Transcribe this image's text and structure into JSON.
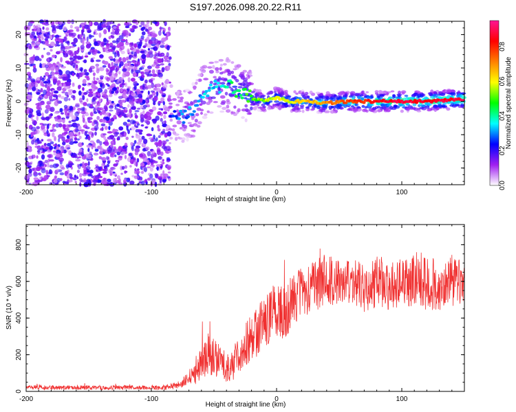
{
  "title": "S197.2026.098.20.22.R11",
  "top_panel": {
    "type": "heatmap",
    "xlabel": "Height of straight line (km)",
    "ylabel": "Frequency (Hz)",
    "xlim": [
      -200,
      150
    ],
    "ylim": [
      -25,
      24
    ],
    "x_ticks": [
      {
        "value": -200,
        "label": "-200"
      },
      {
        "value": -100,
        "label": "-100"
      },
      {
        "value": 0,
        "label": "0"
      },
      {
        "value": 100,
        "label": "100"
      }
    ],
    "y_ticks": [
      {
        "value": 20,
        "label": "20"
      },
      {
        "value": 10,
        "label": "10"
      },
      {
        "value": 0,
        "label": "0"
      },
      {
        "value": -10,
        "label": "-10"
      },
      {
        "value": -20,
        "label": "-20"
      }
    ],
    "noise_edge_km": -85,
    "ridge": [
      {
        "x": -85,
        "f": -3,
        "a": 0.2
      },
      {
        "x": -75,
        "f": -5,
        "a": 0.25
      },
      {
        "x": -65,
        "f": -2,
        "a": 0.25
      },
      {
        "x": -58,
        "f": 3,
        "a": 0.3
      },
      {
        "x": -50,
        "f": 4,
        "a": 0.3
      },
      {
        "x": -40,
        "f": 5,
        "a": 0.35
      },
      {
        "x": -30,
        "f": 3,
        "a": 0.4
      },
      {
        "x": -20,
        "f": 1,
        "a": 0.45
      },
      {
        "x": -10,
        "f": 0,
        "a": 0.5
      },
      {
        "x": 0,
        "f": 1,
        "a": 0.55
      },
      {
        "x": 10,
        "f": 0,
        "a": 0.55
      },
      {
        "x": 20,
        "f": 0,
        "a": 0.6
      },
      {
        "x": 40,
        "f": -0.5,
        "a": 0.65
      },
      {
        "x": 60,
        "f": 0,
        "a": 0.75
      },
      {
        "x": 80,
        "f": 0,
        "a": 0.8
      },
      {
        "x": 100,
        "f": 0,
        "a": 0.85
      },
      {
        "x": 120,
        "f": 0,
        "a": 0.8
      },
      {
        "x": 140,
        "f": 0.5,
        "a": 0.85
      },
      {
        "x": 150,
        "f": 0.5,
        "a": 0.85
      }
    ]
  },
  "colorbar": {
    "label": "Normalized spectral amplitude",
    "range": [
      0,
      0.95
    ],
    "ticks": [
      {
        "value": 0.0,
        "label": "0.0"
      },
      {
        "value": 0.2,
        "label": "0.2"
      },
      {
        "value": 0.4,
        "label": "0.4"
      },
      {
        "value": 0.6,
        "label": "0.6"
      },
      {
        "value": 0.8,
        "label": "0.8"
      }
    ],
    "colors": [
      "#ffffff",
      "#a020f0",
      "#0000ff",
      "#00ffff",
      "#00ff00",
      "#ffff00",
      "#ff8000",
      "#ff0000",
      "#ff1493"
    ]
  },
  "chart_data": {
    "type": "line",
    "title": "S197.2026.098.20.22.R11",
    "xlabel": "Height of straight line (km)",
    "ylabel": "SNR (10 * v/v)",
    "xlim": [
      -200,
      150
    ],
    "ylim": [
      0,
      910
    ],
    "x_ticks": [
      {
        "value": -200,
        "label": "-200"
      },
      {
        "value": -100,
        "label": "-100"
      },
      {
        "value": 0,
        "label": "0"
      },
      {
        "value": 100,
        "label": "100"
      }
    ],
    "y_ticks": [
      {
        "value": 0,
        "label": "0"
      },
      {
        "value": 200,
        "label": "200"
      },
      {
        "value": 400,
        "label": "400"
      },
      {
        "value": 600,
        "label": "600"
      },
      {
        "value": 800,
        "label": "800"
      }
    ],
    "color": "#f03030",
    "series": [
      {
        "name": "SNR",
        "x": [
          -200,
          -180,
          -160,
          -140,
          -120,
          -100,
          -90,
          -80,
          -75,
          -70,
          -65,
          -60,
          -55,
          -50,
          -45,
          -40,
          -35,
          -30,
          -25,
          -20,
          -15,
          -10,
          -5,
          0,
          5,
          10,
          15,
          20,
          25,
          30,
          35,
          40,
          45,
          50,
          55,
          60,
          65,
          70,
          75,
          80,
          85,
          90,
          95,
          100,
          105,
          110,
          115,
          120,
          125,
          130,
          135,
          140,
          145,
          150
        ],
        "values": [
          22,
          20,
          22,
          20,
          22,
          20,
          22,
          30,
          45,
          70,
          110,
          160,
          200,
          185,
          160,
          130,
          140,
          200,
          260,
          300,
          330,
          380,
          420,
          450,
          420,
          470,
          510,
          560,
          540,
          570,
          600,
          620,
          610,
          590,
          580,
          600,
          590,
          560,
          570,
          600,
          580,
          560,
          590,
          600,
          590,
          610,
          600,
          590,
          580,
          560,
          600,
          600,
          590,
          590
        ],
        "spread": [
          12,
          12,
          12,
          12,
          12,
          12,
          14,
          20,
          30,
          45,
          70,
          120,
          130,
          110,
          90,
          80,
          90,
          110,
          130,
          140,
          140,
          150,
          150,
          150,
          150,
          150,
          150,
          140,
          140,
          140,
          150,
          140,
          140,
          130,
          130,
          140,
          130,
          130,
          130,
          140,
          130,
          130,
          140,
          140,
          140,
          150,
          160,
          150,
          150,
          140,
          150,
          150,
          140,
          140
        ]
      }
    ]
  }
}
